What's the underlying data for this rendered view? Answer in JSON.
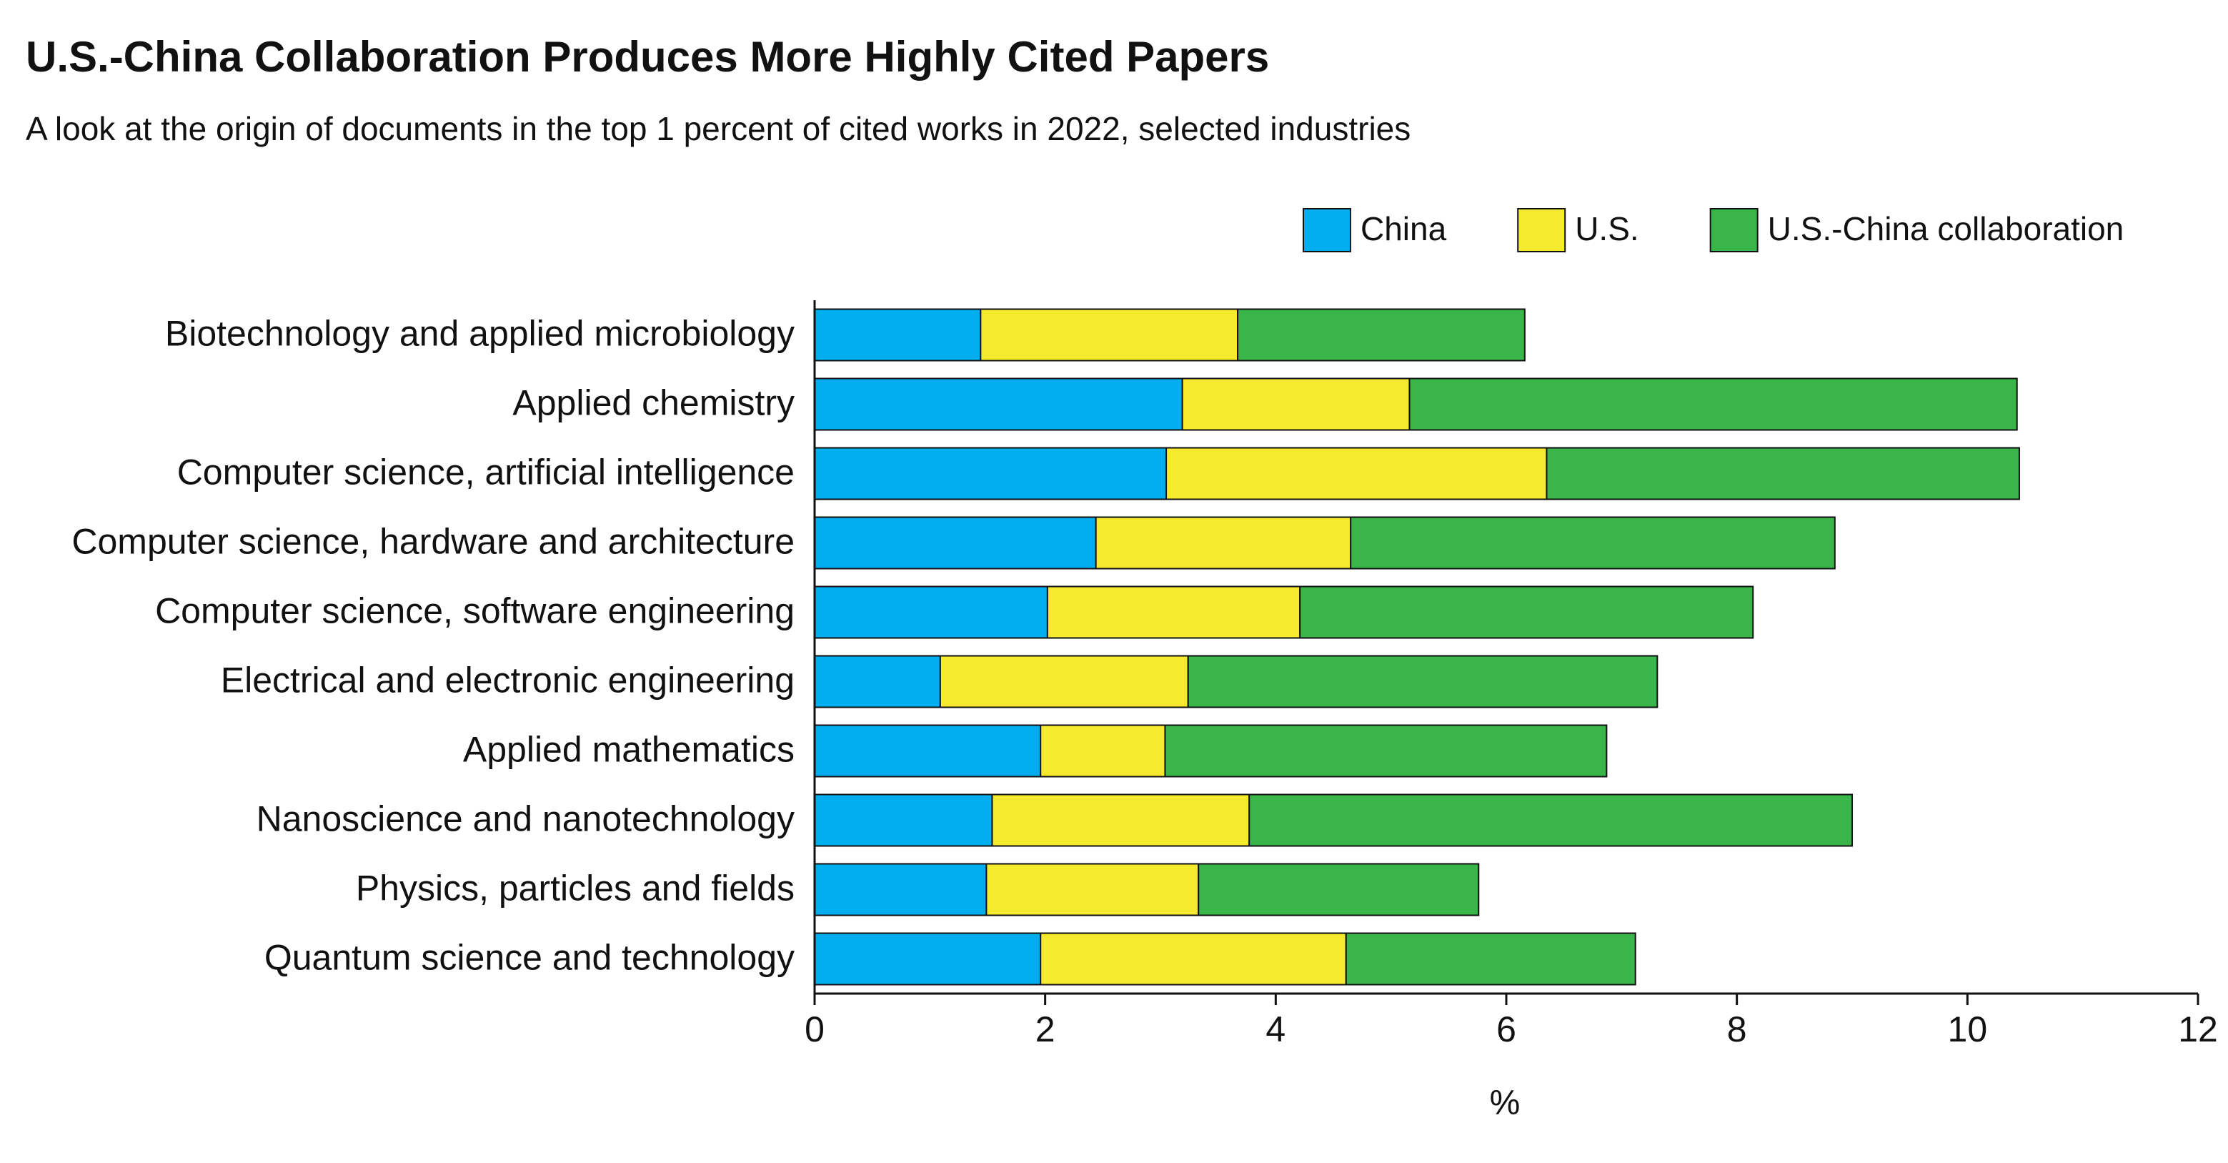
{
  "chart_data": {
    "type": "stacked-bar-horizontal",
    "title": "U.S.-China Collaboration Produces More Highly Cited Papers",
    "subtitle": "A look at the origin of documents in the top 1 percent of cited works in 2022, selected industries",
    "x_label": "%",
    "categories": [
      "Biotechnology and applied microbiology",
      "Applied chemistry",
      "Computer science, artificial intelligence",
      "Computer science, hardware and architecture",
      "Computer science, software engineering",
      "Electrical and electronic engineering",
      "Applied mathematics",
      "Nanoscience and nanotechnology",
      "Physics, particles and fields",
      "Quantum science and technology"
    ],
    "series": [
      {
        "name": "China",
        "color": "#00aeef",
        "values": [
          1.44,
          3.19,
          3.05,
          2.44,
          2.02,
          1.09,
          1.96,
          1.54,
          1.49,
          1.96
        ]
      },
      {
        "name": "U.S.",
        "color": "#f5ea2e",
        "values": [
          2.23,
          1.97,
          3.3,
          2.21,
          2.19,
          2.15,
          1.08,
          2.23,
          1.84,
          2.65
        ]
      },
      {
        "name": "U.S.-China collaboration",
        "color": "#39b54a",
        "values": [
          2.49,
          5.27,
          4.1,
          4.2,
          3.93,
          4.07,
          3.83,
          5.23,
          2.43,
          2.51
        ]
      }
    ],
    "xlim": [
      0,
      12
    ],
    "xticks": [
      0,
      2,
      4,
      6,
      8,
      10,
      12
    ],
    "legend": "top-right",
    "grid": false
  }
}
